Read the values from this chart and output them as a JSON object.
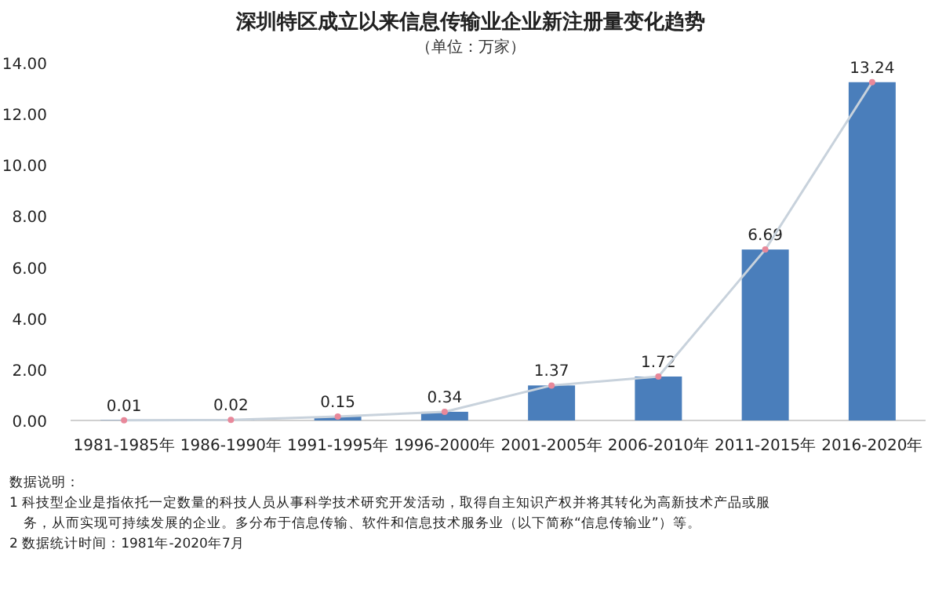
{
  "chart_data": {
    "type": "bar",
    "title": "深圳特区成立以来信息传输业企业新注册量变化趋势",
    "subtitle": "（单位：万家）",
    "categories": [
      "1981-1985年",
      "1986-1990年",
      "1991-1995年",
      "1996-2000年",
      "2001-2005年",
      "2006-2010年",
      "2011-2015年",
      "2016-2020年"
    ],
    "series": [
      {
        "color": "#4a7ebb",
        "values": [
          0.01,
          0.02,
          0.15,
          0.34,
          1.37,
          1.72,
          6.69,
          13.24
        ],
        "value_labels": [
          "0.01",
          "0.02",
          "0.15",
          "0.34",
          "1.37",
          "1.72",
          "6.69",
          "13.24"
        ]
      },
      {
        "type": "line",
        "color": "#c8d2dc",
        "marker": "circle",
        "values": [
          0.01,
          0.02,
          0.15,
          0.34,
          1.37,
          1.72,
          6.69,
          13.24
        ]
      }
    ],
    "ylim": [
      0,
      14
    ],
    "yticks": [
      {
        "value": 0,
        "label": "0.00"
      },
      {
        "value": 2,
        "label": "2.00"
      },
      {
        "value": 4,
        "label": "4.00"
      },
      {
        "value": 6,
        "label": "6.00"
      },
      {
        "value": 8,
        "label": "8.00"
      },
      {
        "value": 10,
        "label": "10.00"
      },
      {
        "value": 12,
        "label": "12.00"
      },
      {
        "value": 14,
        "label": "14.00"
      }
    ],
    "annotations": [
      "数据说明：",
      "1 科技型企业是指依托一定数量的科技人员从事科学技术研究开发活动，取得自主知识产权并将其转化为高新技术产品或服务，从而实现可持续发展的企业。多分布于信息传输、软件和信息技术服务业（以下简称“信息传输业”）等。",
      "2 数据统计时间：1981年-2020年7月"
    ]
  }
}
